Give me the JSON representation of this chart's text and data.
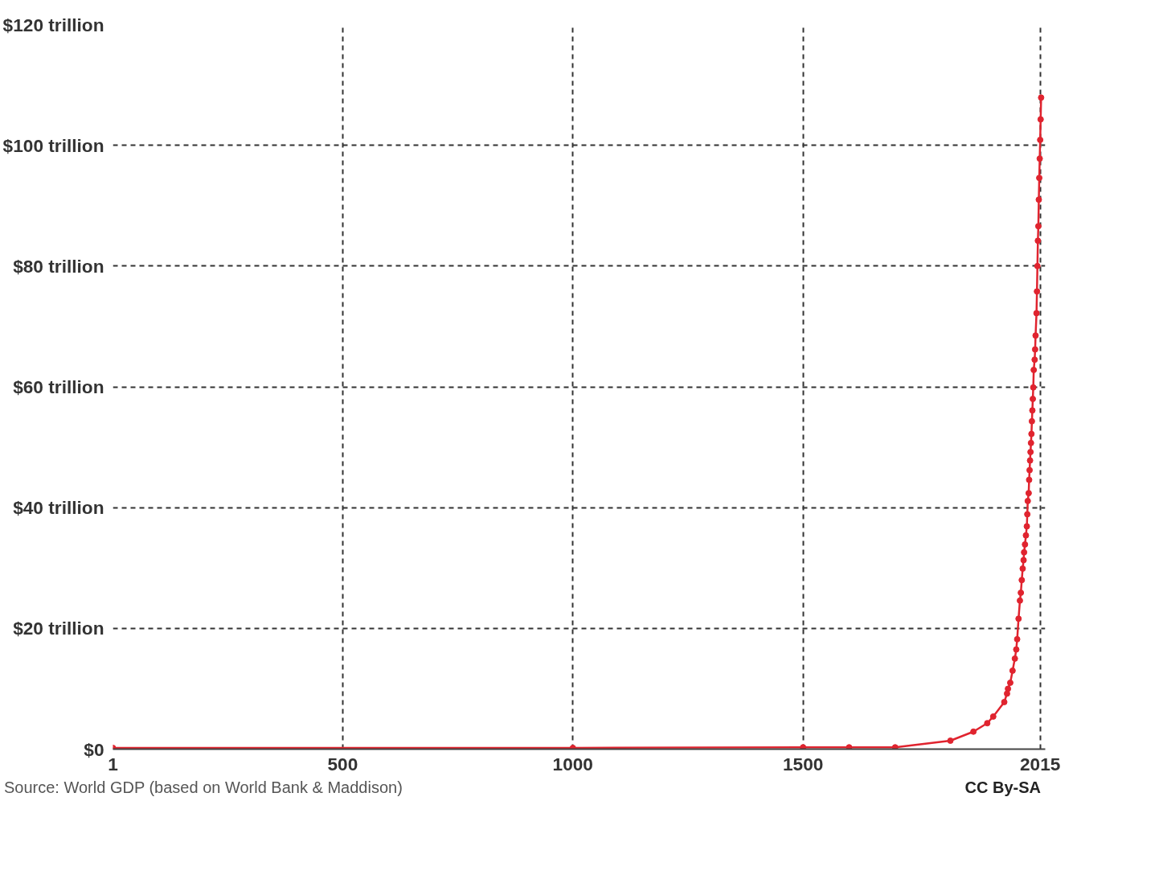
{
  "chart_data": {
    "type": "line",
    "x": [
      1,
      1000,
      1500,
      1600,
      1700,
      1820,
      1870,
      1900,
      1913,
      1937,
      1943,
      1945,
      1950,
      1955,
      1960,
      1963,
      1965,
      1968,
      1971,
      1973,
      1975,
      1977,
      1979,
      1980,
      1982,
      1984,
      1986,
      1987,
      1988,
      1990,
      1991,
      1992,
      1993,
      1994,
      1995,
      1996,
      1997,
      1998,
      1999,
      2000,
      2001,
      2003,
      2004,
      2005,
      2007,
      2008,
      2009,
      2010,
      2011,
      2012,
      2013,
      2014,
      2015,
      2016,
      2017
    ],
    "series": [
      {
        "color": "#e0242f",
        "values": [
          0.2,
          0.2,
          0.3,
          0.3,
          0.3,
          1.4,
          2.9,
          4.3,
          5.4,
          7.8,
          9.2,
          10,
          11,
          13,
          15,
          16.5,
          18.2,
          21.6,
          24.6,
          25.9,
          28,
          29.9,
          31.3,
          32.6,
          33.9,
          35.4,
          36.9,
          38.9,
          41.1,
          42.4,
          44.6,
          46.2,
          47.8,
          49.2,
          50.7,
          52.2,
          54.3,
          56.1,
          58,
          59.9,
          62.8,
          64.5,
          66.2,
          68.5,
          72.2,
          75.8,
          80,
          84.2,
          86.6,
          91,
          94.6,
          97.8,
          100.9,
          104.3,
          107.9
        ]
      }
    ],
    "xlim": [
      1,
      2026
    ],
    "ylim": [
      0,
      120
    ],
    "xticks": [
      1,
      500,
      1000,
      1500,
      2015
    ],
    "yticks": [
      {
        "value": 0,
        "label": "$0"
      },
      {
        "value": 20,
        "label": "$20 trillion"
      },
      {
        "value": 40,
        "label": "$40 trillion"
      },
      {
        "value": 60,
        "label": "$60 trillion"
      },
      {
        "value": 80,
        "label": "$80 trillion"
      },
      {
        "value": 100,
        "label": "$100 trillion"
      },
      {
        "value": 120,
        "label": "$120 trillion"
      }
    ],
    "grid": true,
    "marker": "circle",
    "line_style": "solid",
    "annotations": [
      "Source: World GDP (based on World Bank & Maddison)",
      "CC By-SA"
    ]
  }
}
